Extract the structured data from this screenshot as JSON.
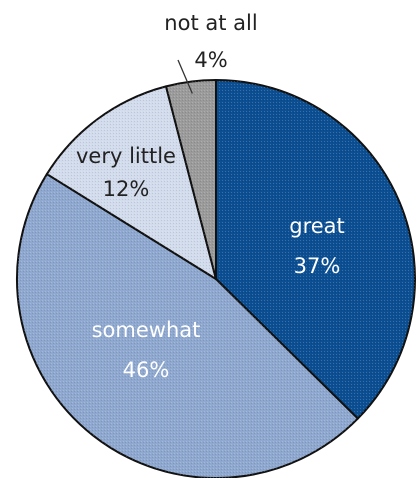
{
  "chart_data": {
    "type": "pie",
    "start_angle_deg": 0,
    "direction": "clockwise",
    "slices": [
      {
        "label": "great",
        "value": 37,
        "value_label": "37%",
        "color": "#0b4f92",
        "text_color": "#ffffff"
      },
      {
        "label": "somewhat",
        "value": 46,
        "value_label": "46%",
        "color": "#8fa8cf",
        "text_color": "#ffffff"
      },
      {
        "label": "very little",
        "value": 12,
        "value_label": "12%",
        "color": "#d3dcec",
        "text_color": "#222222"
      },
      {
        "label": "not at all",
        "value": 4,
        "value_label": "4%",
        "color": "#9b9b9b",
        "text_color": "#222222"
      }
    ],
    "outline_color": "#111111"
  }
}
